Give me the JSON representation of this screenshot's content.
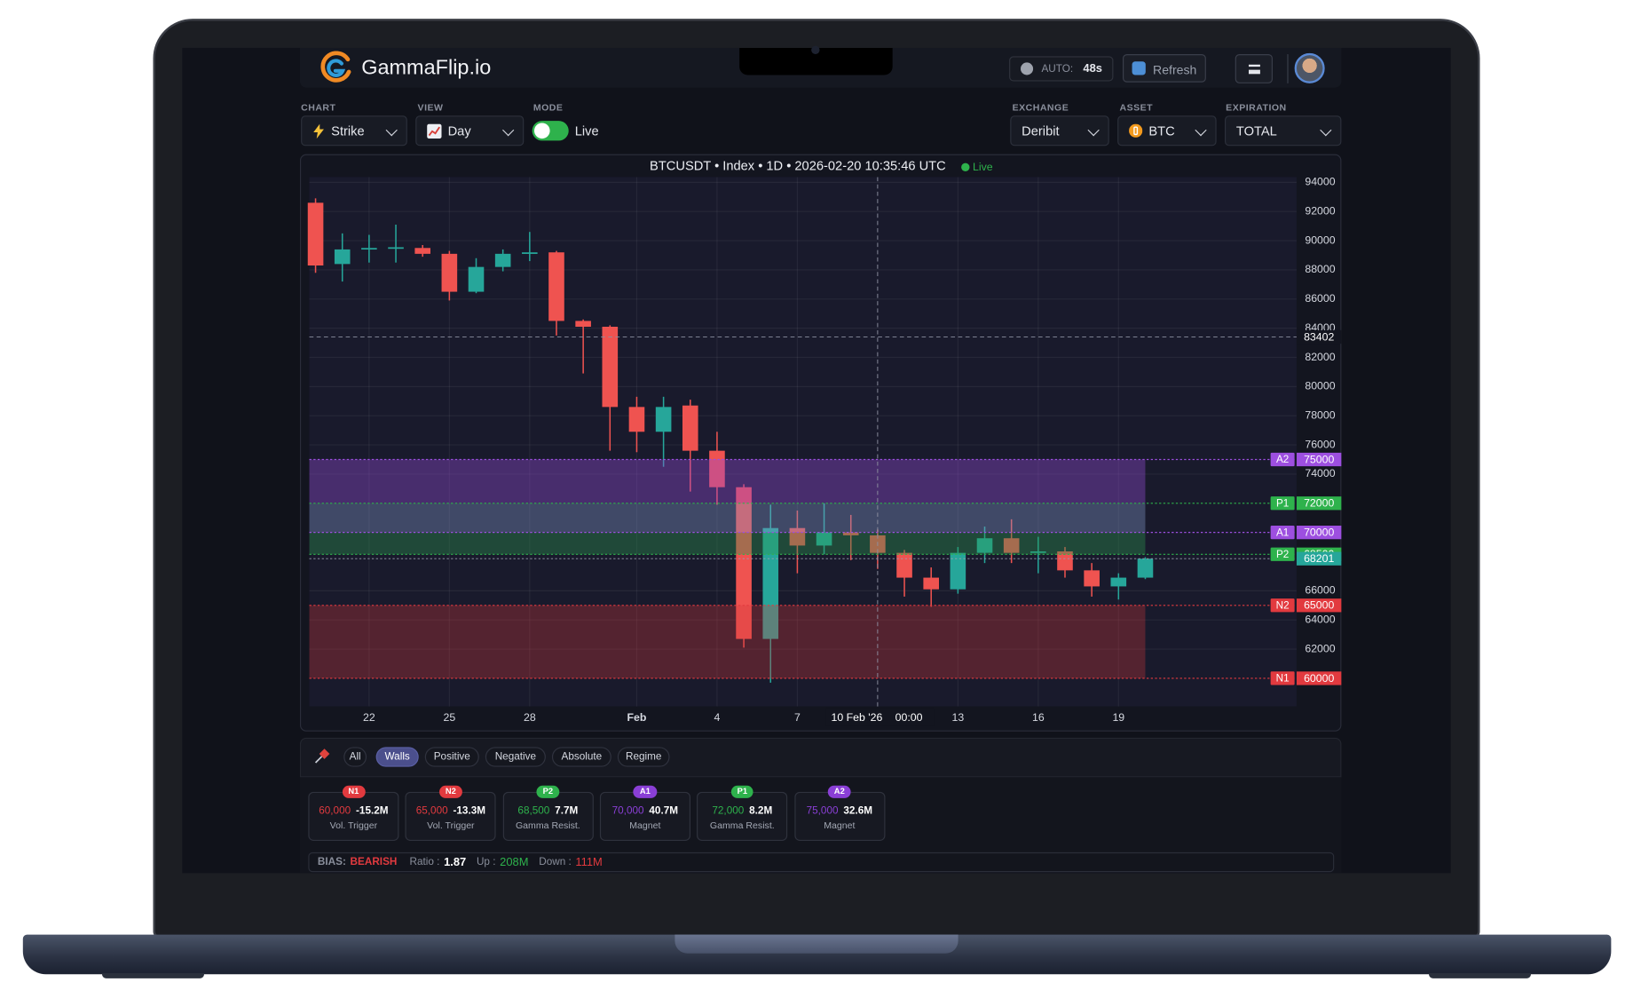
{
  "header": {
    "brand": "GammaFlip.io",
    "auto_label": "AUTO:",
    "auto_value": "48s",
    "refresh": "Refresh"
  },
  "controls": {
    "chart": {
      "label": "CHART",
      "value": "Strike"
    },
    "view": {
      "label": "VIEW",
      "value": "Day"
    },
    "mode": {
      "label": "MODE",
      "value": "Live"
    },
    "exchange": {
      "label": "EXCHANGE",
      "value": "Deribit"
    },
    "asset": {
      "label": "ASSET",
      "value": "BTC"
    },
    "expiration": {
      "label": "EXPIRATION",
      "value": "TOTAL"
    }
  },
  "chart_data": {
    "type": "candlestick",
    "title": "BTCUSDT • Index • 1D • 2026-02-20 10:35:46 UTC",
    "status": "Live",
    "categories": [
      null,
      null,
      "22",
      null,
      null,
      "25",
      null,
      null,
      "28",
      null,
      null,
      null,
      "Feb",
      null,
      null,
      "4",
      null,
      null,
      "7",
      null,
      null,
      null,
      null,
      null,
      "13",
      null,
      null,
      "16",
      null,
      null,
      "19",
      null
    ],
    "open": [
      92600,
      88400,
      89400,
      89450,
      89500,
      89100,
      86500,
      88200,
      89100,
      89200,
      84500,
      84100,
      78600,
      76900,
      78700,
      75600,
      73100,
      62700,
      70300,
      69100,
      70000,
      69800,
      68600,
      66900,
      66100,
      68600,
      69600,
      68600,
      68700,
      67400,
      66300,
      66900
    ],
    "high": [
      92900,
      90500,
      90400,
      91100,
      89700,
      89300,
      88800,
      89400,
      90600,
      89300,
      84600,
      84200,
      79300,
      79300,
      79100,
      76900,
      73300,
      71900,
      71500,
      72000,
      71200,
      70200,
      68800,
      67600,
      69000,
      70400,
      70900,
      69700,
      69000,
      67900,
      67200,
      68300
    ],
    "low": [
      87800,
      87200,
      88500,
      88500,
      88900,
      85900,
      86400,
      87900,
      88600,
      83500,
      80900,
      75600,
      75500,
      74500,
      72800,
      71900,
      62100,
      59700,
      67200,
      68500,
      68100,
      67500,
      65600,
      64900,
      65800,
      67900,
      67900,
      67200,
      66900,
      65600,
      65400,
      66800
    ],
    "close": [
      88300,
      89400,
      89500,
      89550,
      89100,
      86500,
      88200,
      89100,
      89200,
      84500,
      84100,
      78600,
      76900,
      78600,
      75600,
      73100,
      62700,
      70300,
      69100,
      70000,
      69800,
      68600,
      66900,
      66100,
      68600,
      69600,
      68600,
      68700,
      67400,
      66300,
      66900,
      68200
    ],
    "colors": {
      "up": "#26a69a",
      "down": "#ef5350"
    },
    "ylim": [
      59000,
      94500
    ],
    "yticks": [
      94000,
      92000,
      90000,
      88000,
      86000,
      84000,
      82000,
      80000,
      78000,
      76000,
      74000,
      66000,
      64000,
      62000
    ],
    "grid": true,
    "last_price": 68201,
    "crosshair": {
      "price": 83402,
      "date": "10 Feb '26",
      "time": "00:00"
    },
    "levels": [
      {
        "name": "A2",
        "value": 75000,
        "color": "#9d4fe0"
      },
      {
        "name": "P1",
        "value": 72000,
        "color": "#2eb24c"
      },
      {
        "name": "A1",
        "value": 70000,
        "color": "#9d4fe0"
      },
      {
        "name": "P2",
        "value": 68500,
        "color": "#2eb24c"
      },
      {
        "name": "N2",
        "value": 65000,
        "color": "#e23a3f"
      },
      {
        "name": "N1",
        "value": 60000,
        "color": "#e23a3f"
      }
    ]
  },
  "filters": {
    "tabs": [
      {
        "label": "All"
      },
      {
        "label": "Walls",
        "active": true
      },
      {
        "label": "Positive"
      },
      {
        "label": "Negative"
      },
      {
        "label": "Absolute"
      },
      {
        "label": "Regime"
      }
    ]
  },
  "cards": [
    {
      "tag": "N1",
      "strike": "60,000",
      "gex": "-15.2M",
      "kind": "Vol. Trigger",
      "color": "#e23a3f"
    },
    {
      "tag": "N2",
      "strike": "65,000",
      "gex": "-13.3M",
      "kind": "Vol. Trigger",
      "color": "#e23a3f"
    },
    {
      "tag": "P2",
      "strike": "68,500",
      "gex": "7.7M",
      "kind": "Gamma Resist.",
      "color": "#2eb24c"
    },
    {
      "tag": "A1",
      "strike": "70,000",
      "gex": "40.7M",
      "kind": "Magnet",
      "color": "#8a3fd6"
    },
    {
      "tag": "P1",
      "strike": "72,000",
      "gex": "8.2M",
      "kind": "Gamma Resist.",
      "color": "#2eb24c"
    },
    {
      "tag": "A2",
      "strike": "75,000",
      "gex": "32.6M",
      "kind": "Magnet",
      "color": "#8a3fd6"
    }
  ],
  "bias": {
    "label": "BIAS:",
    "value": "BEARISH",
    "ratio_label": "Ratio :",
    "ratio": 1.87,
    "up_label": "Up :",
    "up": "208M",
    "down_label": "Down :",
    "down": "111M"
  }
}
